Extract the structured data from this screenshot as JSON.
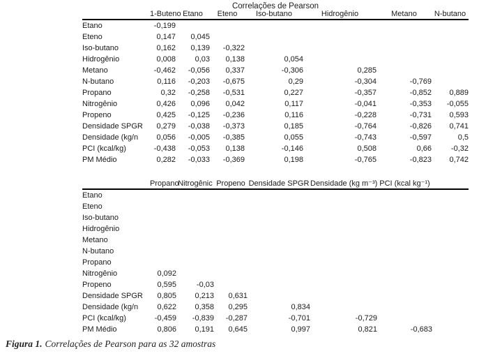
{
  "title": "Correlações de Pearson",
  "caption": {
    "label": "Figura 1.",
    "text": "Correlações de Pearson para as 32 amostras"
  },
  "text_color": "#1a1a1a",
  "background_color": "#ffffff",
  "table1": {
    "columns": [
      "",
      "1-Buteno",
      "Etano",
      "Eteno",
      "Iso-butano",
      "Hidrogênio",
      "Metano",
      "N-butano"
    ],
    "rows": [
      {
        "label": "Etano",
        "values": [
          "-0,199"
        ]
      },
      {
        "label": "Eteno",
        "values": [
          "0,147",
          "0,045"
        ]
      },
      {
        "label": "Iso-butano",
        "values": [
          "0,162",
          "0,139",
          "-0,322"
        ]
      },
      {
        "label": "Hidrogênio",
        "values": [
          "0,008",
          "0,03",
          "0,138",
          "0,054"
        ]
      },
      {
        "label": "Metano",
        "values": [
          "-0,462",
          "-0,056",
          "0,337",
          "-0,306",
          "0,285"
        ]
      },
      {
        "label": "N-butano",
        "values": [
          "0,116",
          "-0,203",
          "-0,675",
          "0,29",
          "-0,304",
          "-0,769"
        ]
      },
      {
        "label": "Propano",
        "values": [
          "0,32",
          "-0,258",
          "-0,531",
          "0,227",
          "-0,357",
          "-0,852",
          "0,889"
        ]
      },
      {
        "label": "Nitrogênio",
        "values": [
          "0,426",
          "0,096",
          "0,042",
          "0,117",
          "-0,041",
          "-0,353",
          "-0,055"
        ]
      },
      {
        "label": "Propeno",
        "values": [
          "0,425",
          "-0,125",
          "-0,236",
          "0,116",
          "-0,228",
          "-0,731",
          "0,593"
        ]
      },
      {
        "label": "Densidade SPGR",
        "values": [
          "0,279",
          "-0,038",
          "-0,373",
          "0,185",
          "-0,764",
          "-0,826",
          "0,741"
        ]
      },
      {
        "label": "Densidade (kg/n",
        "values": [
          "0,056",
          "-0,005",
          "-0,385",
          "0,055",
          "-0,743",
          "-0,597",
          "0,5"
        ]
      },
      {
        "label": "PCI (kcal/kg)",
        "values": [
          "-0,438",
          "-0,053",
          "0,138",
          "-0,146",
          "0,508",
          "0,66",
          "-0,32"
        ]
      },
      {
        "label": "PM Médio",
        "values": [
          "0,282",
          "-0,033",
          "-0,369",
          "0,198",
          "-0,765",
          "-0,823",
          "0,742"
        ]
      }
    ]
  },
  "table2": {
    "columns": [
      "",
      "Propano",
      "Nitrogênic",
      "Propeno",
      "Densidade SPGR",
      "Densidade (kg m⁻³)",
      "PCI (kcal kg⁻¹)",
      ""
    ],
    "rows": [
      {
        "label": "Etano",
        "values": []
      },
      {
        "label": "Eteno",
        "values": []
      },
      {
        "label": "Iso-butano",
        "values": []
      },
      {
        "label": "Hidrogênio",
        "values": []
      },
      {
        "label": "Metano",
        "values": []
      },
      {
        "label": "N-butano",
        "values": []
      },
      {
        "label": "Propano",
        "values": []
      },
      {
        "label": "Nitrogênio",
        "values": [
          "0,092"
        ]
      },
      {
        "label": "Propeno",
        "values": [
          "0,595",
          "-0,03"
        ]
      },
      {
        "label": "Densidade SPGR",
        "values": [
          "0,805",
          "0,213",
          "0,631"
        ]
      },
      {
        "label": "Densidade (kg/n",
        "values": [
          "0,622",
          "0,358",
          "0,295",
          "0,834"
        ]
      },
      {
        "label": "PCI (kcal/kg)",
        "values": [
          "-0,459",
          "-0,839",
          "-0,287",
          "-0,701",
          "-0,729"
        ]
      },
      {
        "label": "PM Médio",
        "values": [
          "0,806",
          "0,191",
          "0,645",
          "0,997",
          "0,821",
          "-0,683"
        ]
      }
    ]
  }
}
